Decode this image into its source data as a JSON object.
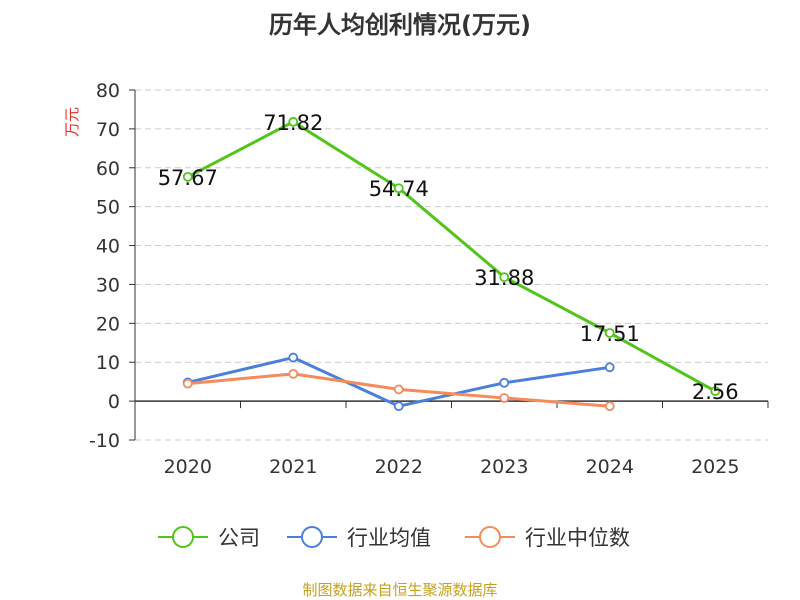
{
  "chart_data": {
    "type": "line",
    "title": "历年人均创利情况(万元)",
    "ylabel": "万元",
    "categories": [
      "2020",
      "2021",
      "2022",
      "2023",
      "2024",
      "2025"
    ],
    "ylim": [
      -10,
      80
    ],
    "yticks": [
      80,
      70,
      60,
      50,
      40,
      30,
      20,
      10,
      0,
      -10
    ],
    "grid": true,
    "legend_position": "bottom",
    "series": [
      {
        "name": "公司",
        "color": "#52c41a",
        "values": [
          57.67,
          71.82,
          54.74,
          31.88,
          17.51,
          2.56
        ],
        "labels": [
          "57.67",
          "71.82",
          "54.74",
          "31.88",
          "17.51",
          "2.56"
        ]
      },
      {
        "name": "行业均值",
        "color": "#4a7fdb",
        "values": [
          4.8,
          11.2,
          -1.3,
          4.7,
          8.7,
          null
        ]
      },
      {
        "name": "行业中位数",
        "color": "#f58b5b",
        "values": [
          4.5,
          7.0,
          3.0,
          0.8,
          -1.3,
          null
        ]
      }
    ]
  },
  "source": "制图数据来自恒生聚源数据库",
  "colors": {
    "ylabel": "#e0312b",
    "source": "#c8a020",
    "grid": "#cccccc",
    "axis": "#333333"
  }
}
